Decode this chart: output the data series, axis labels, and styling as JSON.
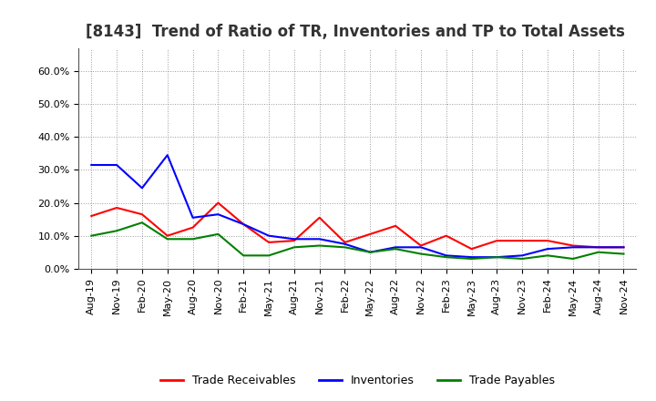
{
  "title": "[8143]  Trend of Ratio of TR, Inventories and TP to Total Assets",
  "x_labels": [
    "Aug-19",
    "Nov-19",
    "Feb-20",
    "May-20",
    "Aug-20",
    "Nov-20",
    "Feb-21",
    "May-21",
    "Aug-21",
    "Nov-21",
    "Feb-22",
    "May-22",
    "Aug-22",
    "Nov-22",
    "Feb-23",
    "May-23",
    "Aug-23",
    "Nov-23",
    "Feb-24",
    "May-24",
    "Aug-24",
    "Nov-24"
  ],
  "trade_receivables": [
    0.16,
    0.185,
    0.165,
    0.1,
    0.125,
    0.2,
    0.135,
    0.08,
    0.085,
    0.155,
    0.08,
    0.105,
    0.13,
    0.07,
    0.1,
    0.06,
    0.085,
    0.085,
    0.085,
    0.07,
    0.065,
    0.065
  ],
  "inventories": [
    0.315,
    0.315,
    0.245,
    0.345,
    0.155,
    0.165,
    0.135,
    0.1,
    0.09,
    0.09,
    0.075,
    0.05,
    0.065,
    0.065,
    0.04,
    0.035,
    0.035,
    0.04,
    0.06,
    0.065,
    0.065,
    0.065
  ],
  "trade_payables": [
    0.1,
    0.115,
    0.14,
    0.09,
    0.09,
    0.105,
    0.04,
    0.04,
    0.065,
    0.07,
    0.065,
    0.05,
    0.06,
    0.045,
    0.035,
    0.03,
    0.035,
    0.03,
    0.04,
    0.03,
    0.05,
    0.045
  ],
  "tr_color": "#FF0000",
  "inv_color": "#0000FF",
  "tp_color": "#008000",
  "ylim": [
    0.0,
    0.67
  ],
  "yticks": [
    0.0,
    0.1,
    0.2,
    0.3,
    0.4,
    0.5,
    0.6
  ],
  "legend_labels": [
    "Trade Receivables",
    "Inventories",
    "Trade Payables"
  ],
  "background_color": "#FFFFFF",
  "plot_bg_color": "#FFFFFF",
  "title_fontsize": 12,
  "tick_fontsize": 8,
  "legend_fontsize": 9
}
